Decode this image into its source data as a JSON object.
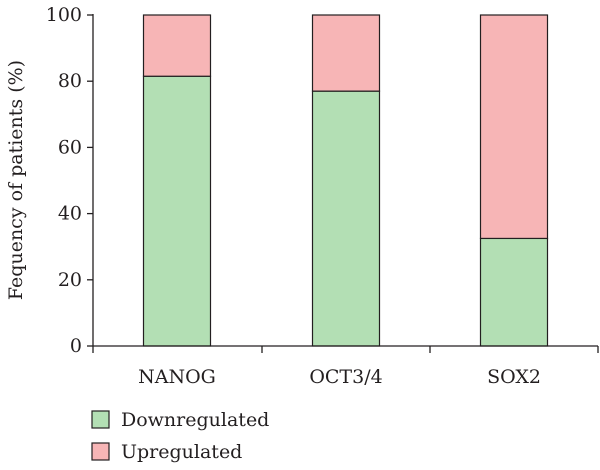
{
  "chart_data": {
    "type": "bar",
    "stacked": true,
    "categories": [
      "NANOG",
      "OCT3/4",
      "SOX2"
    ],
    "series": [
      {
        "name": "Downregulated",
        "values": [
          81.5,
          77,
          32.5
        ],
        "color": "#b3dfb4"
      },
      {
        "name": "Upregulated",
        "values": [
          18.5,
          23,
          67.5
        ],
        "color": "#f7b5b6"
      }
    ],
    "ylabel": "Fequency of patients (%)",
    "xlabel": "",
    "ylim": [
      0,
      100
    ],
    "yticks": [
      0,
      20,
      40,
      60,
      80,
      100
    ],
    "grid": false,
    "legend_position": "bottom-left",
    "outline_color": "#231f20"
  }
}
